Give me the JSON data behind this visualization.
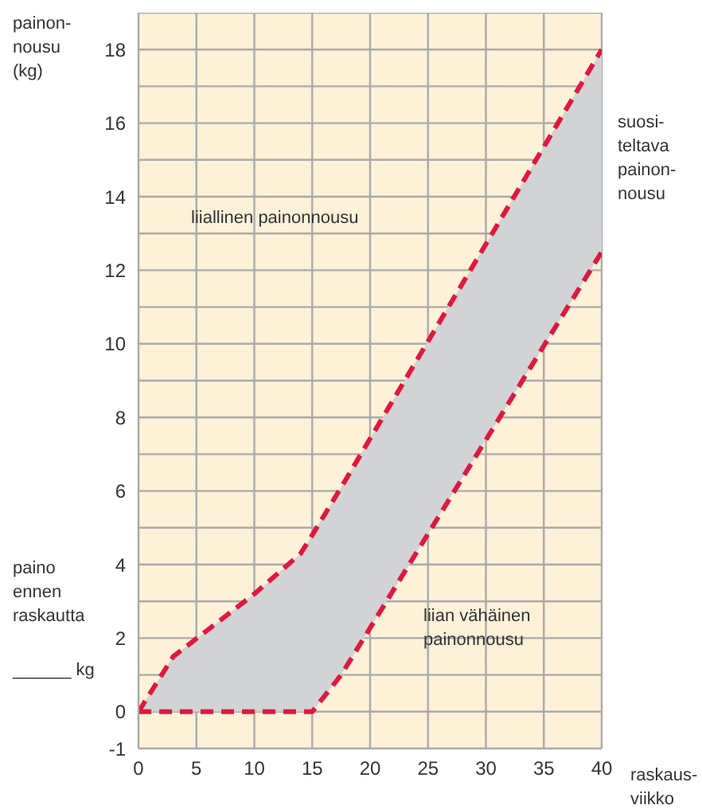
{
  "chart_data": {
    "type": "line",
    "ylabel": "painon-\nnousu\n(kg)",
    "xlabel": "raskaus-\nviikko",
    "x": [
      0,
      3,
      10,
      14,
      15,
      17.5,
      40
    ],
    "xlim": [
      0,
      40
    ],
    "xticks": [
      0,
      5,
      10,
      15,
      20,
      25,
      30,
      35,
      40
    ],
    "ylim": [
      -1,
      19
    ],
    "yticks": [
      -1,
      0,
      {
        "value": 1,
        "label": null
      },
      2,
      {
        "value": 3,
        "label": null
      },
      4,
      {
        "value": 5,
        "label": null
      },
      6,
      {
        "value": 7,
        "label": null
      },
      8,
      {
        "value": 9,
        "label": null
      },
      10,
      {
        "value": 11,
        "label": null
      },
      12,
      {
        "value": 13,
        "label": null
      },
      14,
      {
        "value": 15,
        "label": null
      },
      16,
      {
        "value": 17,
        "label": null
      },
      18,
      {
        "value": 19,
        "label": null
      }
    ],
    "grid": true,
    "line_style": "dashed",
    "marker": "none",
    "series": [
      {
        "color": "#e0173f",
        "values": [
          0,
          1.5,
          3.2,
          4.3,
          4.8,
          6.1,
          18
        ],
        "lower": [
          0,
          0,
          0,
          0,
          0,
          1,
          12.5
        ],
        "upper": [
          0,
          1.5,
          3.2,
          4.3,
          4.8,
          6.1,
          18
        ]
      },
      {
        "color": "#e0173f",
        "values": [
          0,
          0,
          0,
          0,
          0,
          1,
          12.5
        ]
      }
    ],
    "annotations": [
      "liiallinen painonnousu",
      "liian vähäinen\npainonnousu",
      "suosi-\nteltava\npainon-\nnousu",
      "paino\nennen\nraskautta",
      "______ kg"
    ]
  }
}
